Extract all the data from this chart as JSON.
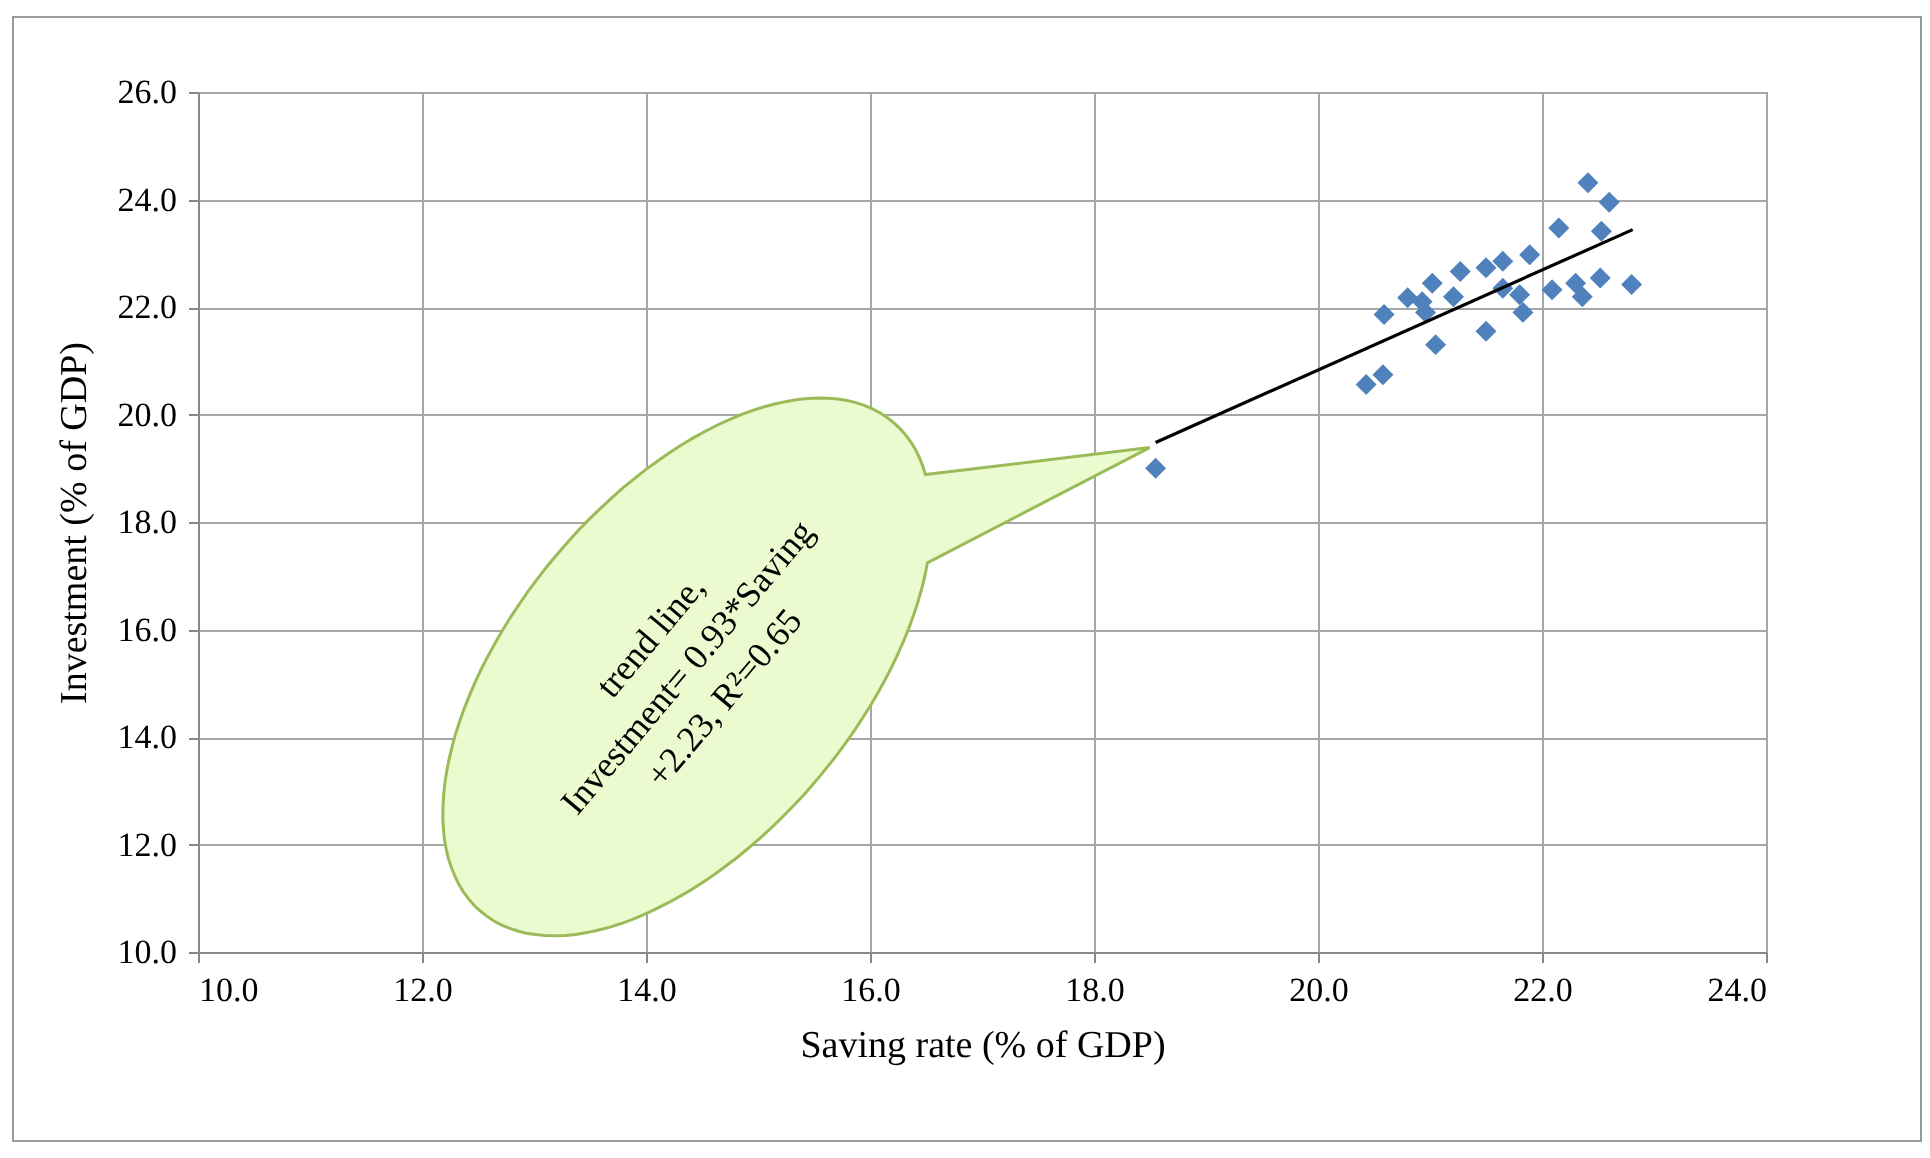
{
  "chart_data": {
    "type": "scatter",
    "xlabel": "Saving rate (% of GDP)",
    "ylabel": "Investment (% of GDP)",
    "xlim": [
      10,
      24
    ],
    "ylim": [
      10,
      26
    ],
    "xticks": [
      {
        "value": 10,
        "label": "10.0"
      },
      {
        "value": 12,
        "label": "12.0"
      },
      {
        "value": 14,
        "label": "14.0"
      },
      {
        "value": 16,
        "label": "16.0"
      },
      {
        "value": 18,
        "label": "18.0"
      },
      {
        "value": 20,
        "label": "20.0"
      },
      {
        "value": 22,
        "label": "22.0"
      },
      {
        "value": 24,
        "label": "24.0"
      }
    ],
    "yticks": [
      {
        "value": 10,
        "label": "10.0"
      },
      {
        "value": 12,
        "label": "12.0"
      },
      {
        "value": 14,
        "label": "14.0"
      },
      {
        "value": 16,
        "label": "16.0"
      },
      {
        "value": 18,
        "label": "18.0"
      },
      {
        "value": 20,
        "label": "20.0"
      },
      {
        "value": 22,
        "label": "22.0"
      },
      {
        "value": 24,
        "label": "24.0"
      },
      {
        "value": 26,
        "label": "26.0"
      }
    ],
    "grid": true,
    "marker": "diamond",
    "series": [
      {
        "color": "#4f81bd",
        "x": [
          18.55,
          20.43,
          20.58,
          20.59,
          21.05,
          20.8,
          20.93,
          20.96,
          21.02,
          21.21,
          21.27,
          21.5,
          21.5,
          21.65,
          21.65,
          21.8,
          21.83,
          21.89,
          22.09,
          22.15,
          22.3,
          22.36,
          22.41,
          22.52,
          22.53,
          22.6,
          22.8
        ],
        "values": [
          19.0,
          20.56,
          20.74,
          21.86,
          21.3,
          22.17,
          22.1,
          21.9,
          22.44,
          22.19,
          22.66,
          21.55,
          22.73,
          22.85,
          22.35,
          22.23,
          21.9,
          22.97,
          22.32,
          23.47,
          22.44,
          22.19,
          24.31,
          22.54,
          23.41,
          23.95,
          22.42
        ]
      },
      {
        "type": "line",
        "marker": "none",
        "color": "#000000",
        "x": [
          18.55,
          22.81
        ],
        "values": [
          19.48,
          23.44
        ]
      }
    ],
    "annotations": [
      "trend line,\nInvestment= 0.93*Saving\n+2.23,  R²=0.65"
    ]
  }
}
